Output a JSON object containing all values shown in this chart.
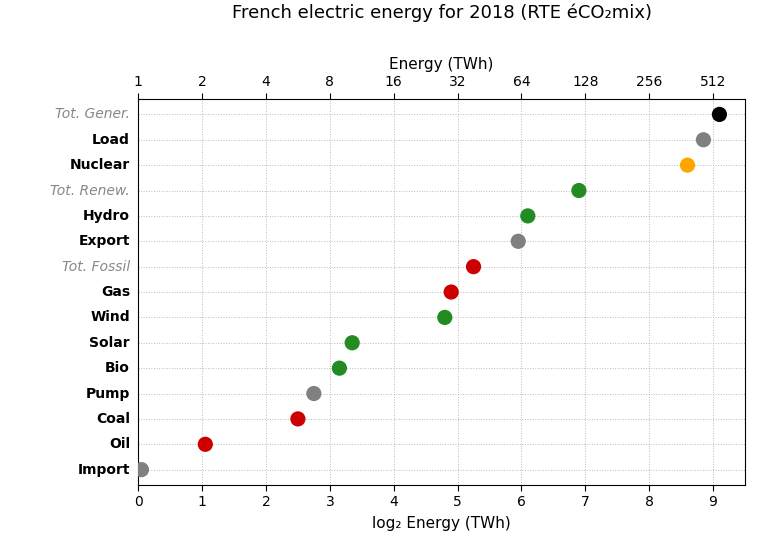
{
  "title_line1": "French electric energy for 2018 (RTE éCO₂mix)",
  "title_line2": "Energy (TWh)",
  "xlabel_bottom": "log₂ Energy (TWh)",
  "categories": [
    "Tot. Gener.",
    "Load",
    "Nuclear",
    "Tot. Renew.",
    "Hydro",
    "Export",
    "Tot. Fossil",
    "Gas",
    "Wind",
    "Solar",
    "Bio",
    "Pump",
    "Coal",
    "Oil",
    "Import"
  ],
  "italic_categories": [
    "Tot. Gener.",
    "Tot. Renew.",
    "Tot. Fossil"
  ],
  "x_values": [
    9.1,
    8.85,
    8.6,
    6.9,
    6.1,
    5.95,
    5.25,
    4.9,
    4.8,
    3.35,
    3.15,
    2.75,
    2.5,
    1.05,
    0.05
  ],
  "colors": [
    "#000000",
    "#808080",
    "#FFA500",
    "#228B22",
    "#228B22",
    "#808080",
    "#CC0000",
    "#CC0000",
    "#228B22",
    "#228B22",
    "#228B22",
    "#808080",
    "#CC0000",
    "#CC0000",
    "#808080"
  ],
  "dot_size": 120,
  "xlim": [
    0,
    9.5
  ],
  "top_axis_ticks": [
    0,
    1,
    2,
    3,
    4,
    5,
    6,
    7,
    8,
    9
  ],
  "top_axis_labels": [
    "1",
    "2",
    "4",
    "8",
    "16",
    "32",
    "64",
    "128",
    "256",
    "512"
  ],
  "bottom_axis_ticks": [
    0,
    1,
    2,
    3,
    4,
    5,
    6,
    7,
    8,
    9
  ],
  "bottom_axis_labels": [
    "0",
    "1",
    "2",
    "3",
    "4",
    "5",
    "6",
    "7",
    "8",
    "9"
  ],
  "grid_color": "#BBBBBB",
  "bg_color": "#FFFFFF"
}
